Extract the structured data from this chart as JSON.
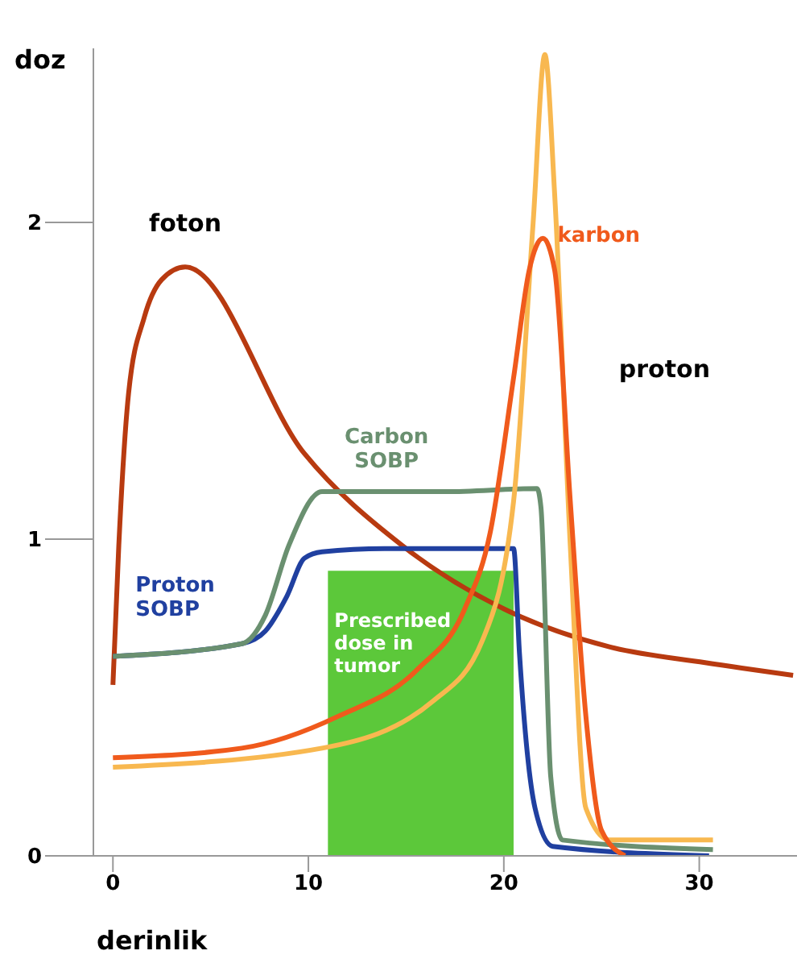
{
  "chart_data": {
    "type": "line",
    "xlabel": "derinlik",
    "ylabel": "doz",
    "xlim": [
      -1,
      35
    ],
    "ylim": [
      0,
      2.55
    ],
    "xticks": [
      0,
      10,
      20,
      30
    ],
    "yticks": [
      0,
      1,
      2
    ],
    "grid": false,
    "legend": false,
    "marker": "none",
    "line_style": "solid",
    "series": [
      {
        "name": "Prescribed dose in tumor",
        "type": "area",
        "color": "#5cc83a",
        "x": [
          11,
          20.5
        ],
        "values": [
          0.9,
          0.9
        ]
      },
      {
        "name": "foton",
        "color": "#b83a10",
        "x": [
          0,
          0.3,
          0.8,
          1.6,
          2.5,
          3.7,
          9.8,
          14.8,
          20,
          25.4,
          30.3,
          34.8
        ],
        "values": [
          0.54,
          0.98,
          1.46,
          1.7,
          1.82,
          1.86,
          1.27,
          0.98,
          0.78,
          0.66,
          0.61,
          0.57
        ]
      },
      {
        "name": "Proton SOBP",
        "color": "#2040a0",
        "x": [
          0,
          6.6,
          7.8,
          8.9,
          9.8,
          10.7,
          13.9,
          20.5,
          20.8,
          21.6,
          22.5,
          30.5
        ],
        "values": [
          0.63,
          0.67,
          0.71,
          0.82,
          0.94,
          0.96,
          0.97,
          0.97,
          0.64,
          0.15,
          0.03,
          0
        ]
      },
      {
        "name": "Carbon SOBP",
        "color": "#6a9070",
        "x": [
          0,
          6.6,
          7.8,
          9,
          10.7,
          14,
          17,
          21.7,
          21.9,
          22.4,
          23,
          30.7
        ],
        "values": [
          0.63,
          0.67,
          0.76,
          0.98,
          1.15,
          1.15,
          1.15,
          1.16,
          1.1,
          0.25,
          0.05,
          0.02
        ]
      },
      {
        "name": "proton",
        "color": "#f8b850",
        "x": [
          0,
          10.7,
          16.4,
          18.9,
          20.5,
          21.5,
          22.1,
          22.6,
          23.4,
          24.2,
          25.4,
          30.7
        ],
        "values": [
          0.28,
          0.34,
          0.49,
          0.68,
          1.12,
          2,
          2.53,
          2.09,
          0.98,
          0.15,
          0.05,
          0.05
        ]
      },
      {
        "name": "karbon",
        "color": "#f05a1c",
        "x": [
          0,
          6.6,
          11.5,
          15.6,
          18,
          19.3,
          20.5,
          21.3,
          22,
          22.6,
          23.4,
          24.2,
          25,
          26.2
        ],
        "values": [
          0.31,
          0.34,
          0.44,
          0.59,
          0.78,
          1.02,
          1.51,
          1.85,
          1.95,
          1.85,
          1.12,
          0.44,
          0.08,
          0
        ]
      }
    ]
  }
}
